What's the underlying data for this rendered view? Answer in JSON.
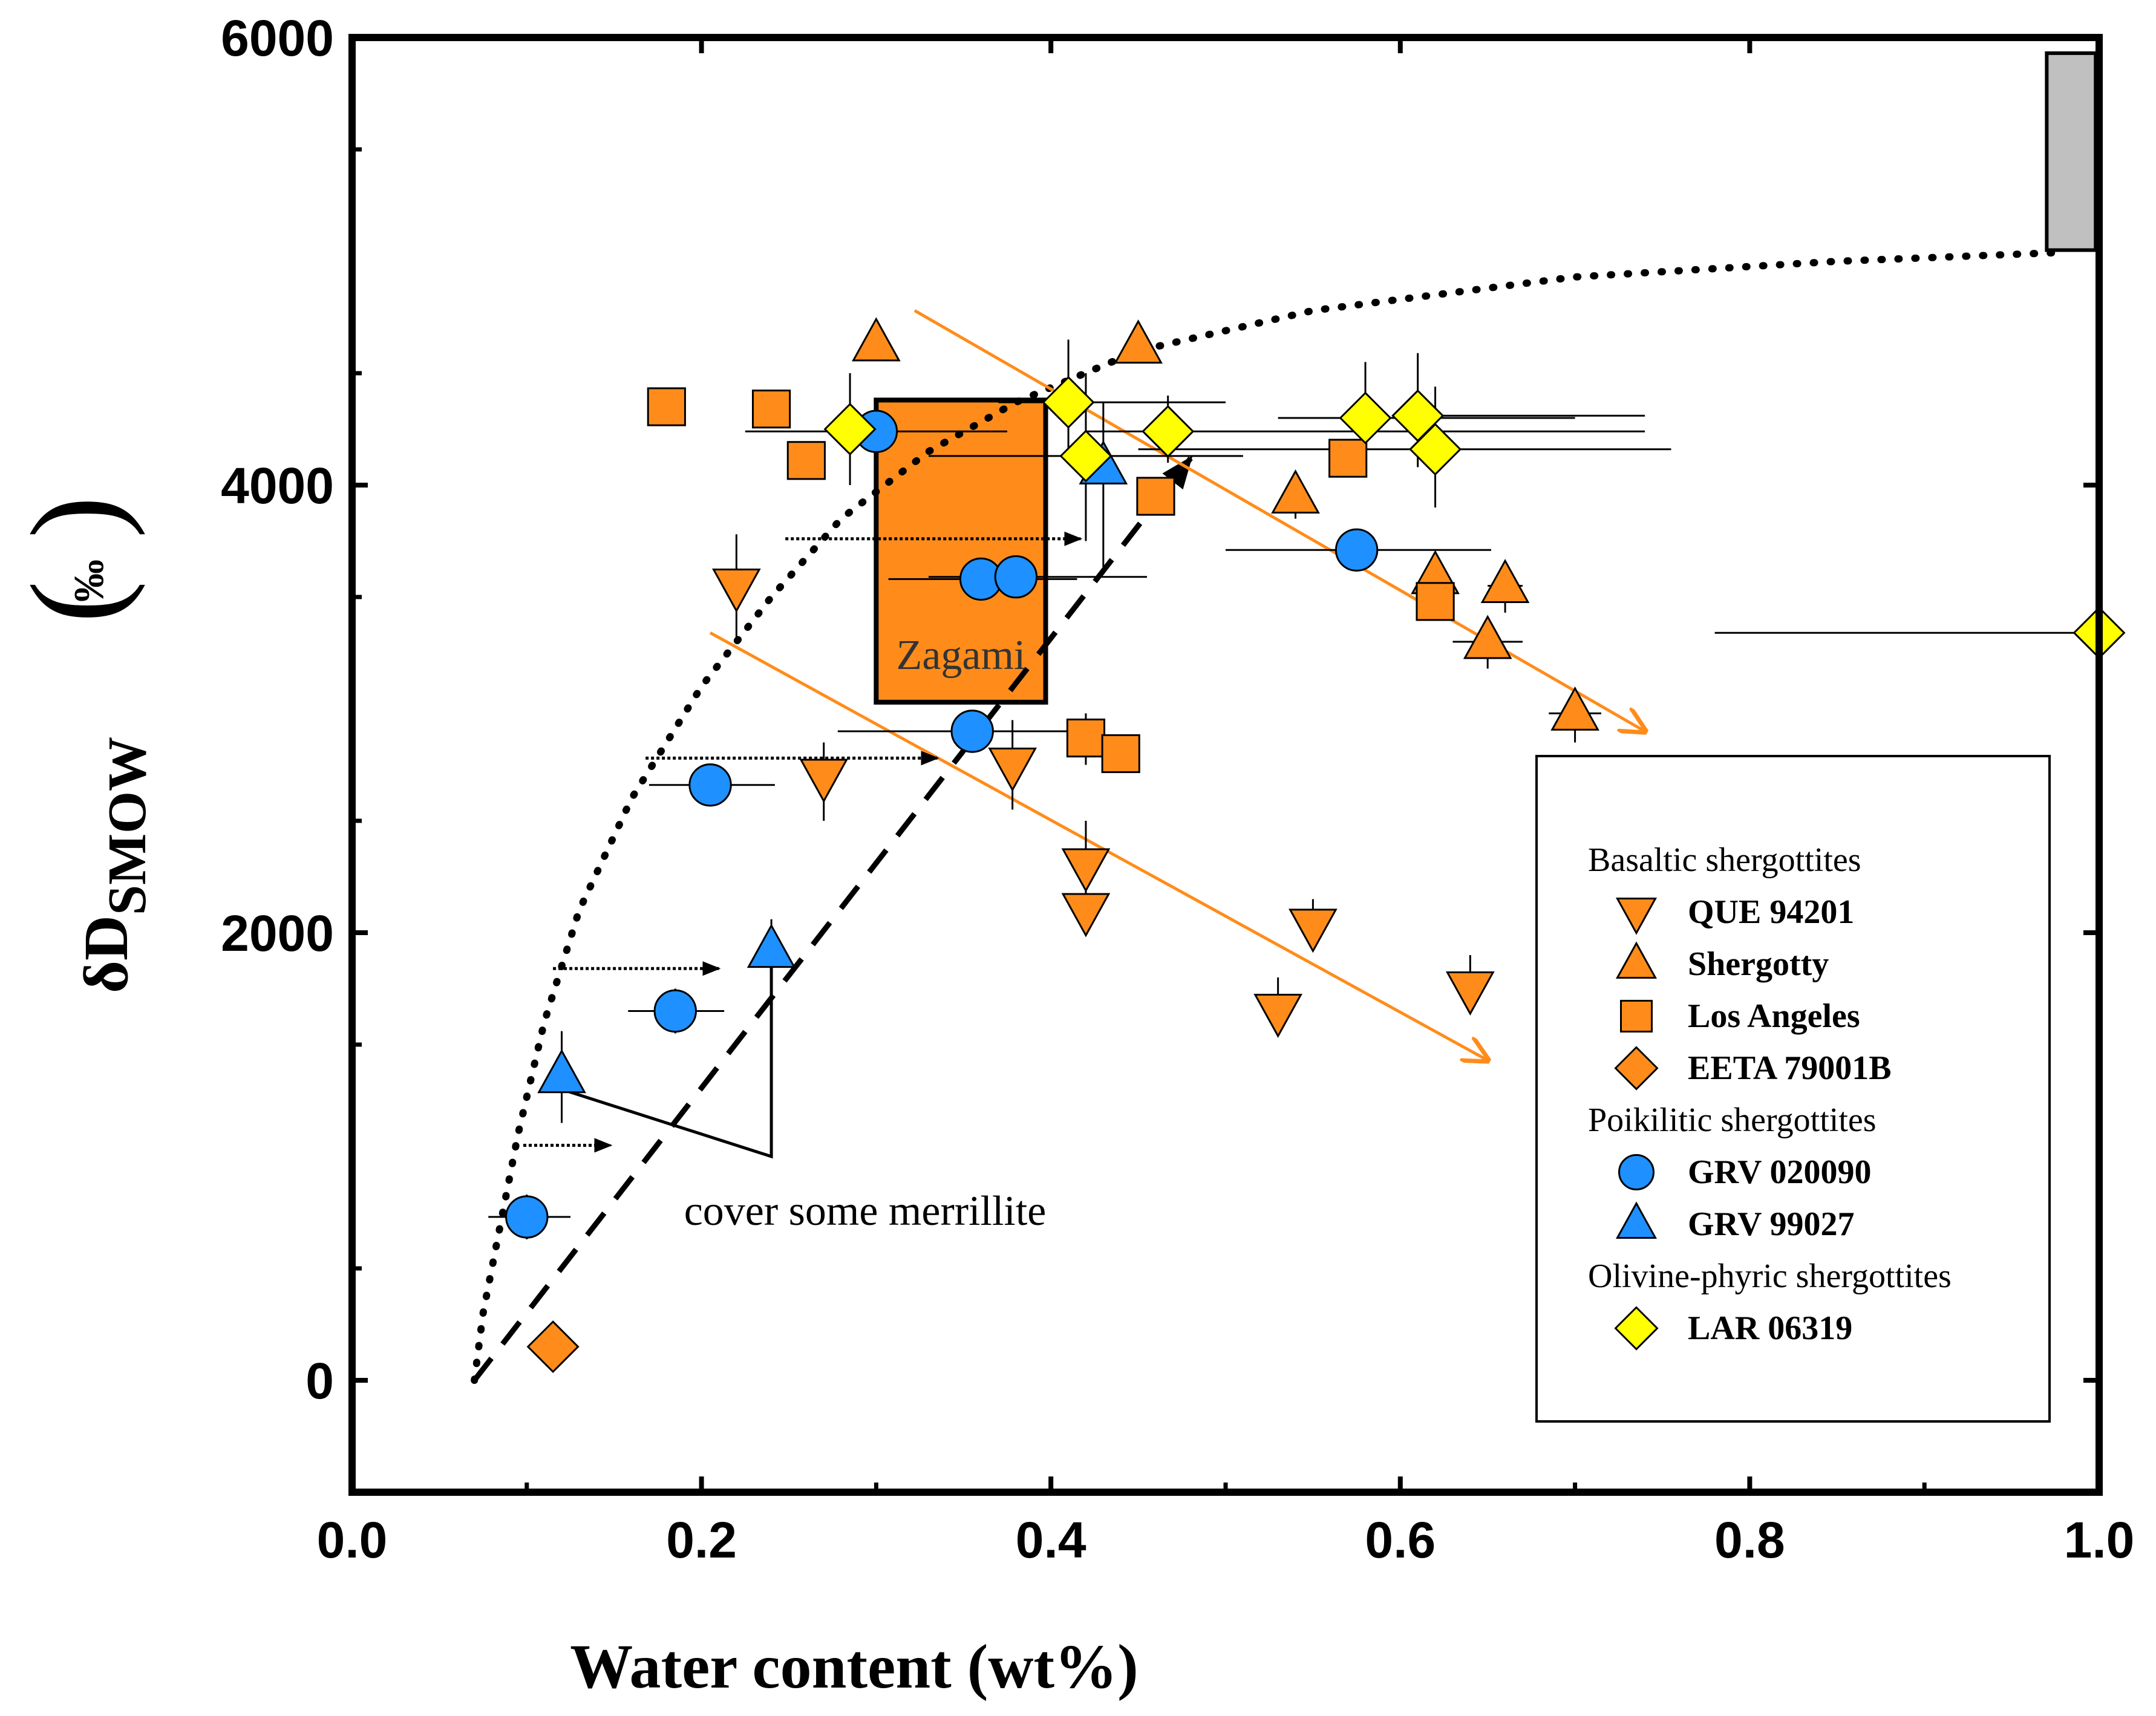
{
  "chart_data": {
    "type": "scatter",
    "xlabel": "Water content (wt%)",
    "ylabel": "δD",
    "ylabel_sub": "SMOW",
    "ylabel_unit": "‰",
    "xlim": [
      0.0,
      1.0
    ],
    "ylim": [
      -500,
      6000
    ],
    "x_ticks": [
      "0.0",
      "0.2",
      "0.4",
      "0.6",
      "0.8",
      "1.0"
    ],
    "y_ticks": [
      "0",
      "2000",
      "4000",
      "6000"
    ],
    "x_tick_values": [
      0.0,
      0.2,
      0.4,
      0.6,
      0.8,
      1.0
    ],
    "y_tick_values": [
      0,
      2000,
      4000,
      6000
    ],
    "legend": {
      "placement": "bottom-right",
      "groups": [
        {
          "title": "Basaltic shergottites",
          "entries": [
            "QUE 94201",
            "Shergotty",
            "Los Angeles",
            "EETA 79001B"
          ]
        },
        {
          "title": "Poikilitic shergottites",
          "entries": [
            "GRV 020090",
            "GRV 99027"
          ]
        },
        {
          "title": "Olivine-phyric shergottites",
          "entries": [
            "LAR 06319"
          ]
        }
      ]
    },
    "series": [
      {
        "name": "QUE 94201",
        "marker": "triangle-down",
        "color": "#FF8C1A",
        "points": [
          [
            0.22,
            3550
          ],
          [
            0.27,
            2700
          ],
          [
            0.378,
            2750
          ],
          [
            0.42,
            2300
          ],
          [
            0.42,
            2100
          ],
          [
            0.53,
            1650
          ],
          [
            0.55,
            2030
          ],
          [
            0.64,
            1750
          ]
        ]
      },
      {
        "name": "Shergotty",
        "marker": "triangle-up",
        "color": "#FF8C1A",
        "points": [
          [
            0.3,
            4630
          ],
          [
            0.45,
            4620
          ],
          [
            0.54,
            3950
          ],
          [
            0.62,
            3590
          ],
          [
            0.66,
            3550
          ],
          [
            0.65,
            3300
          ],
          [
            0.7,
            2980
          ]
        ]
      },
      {
        "name": "Los Angeles",
        "marker": "square",
        "color": "#FF8C1A",
        "points": [
          [
            0.18,
            4350
          ],
          [
            0.24,
            4340
          ],
          [
            0.26,
            4110
          ],
          [
            0.42,
            2870
          ],
          [
            0.44,
            2800
          ],
          [
            0.46,
            3950
          ],
          [
            0.57,
            4120
          ],
          [
            0.62,
            3480
          ]
        ]
      },
      {
        "name": "EETA 79001B",
        "marker": "diamond",
        "color": "#FF8C1A",
        "points": [
          [
            0.115,
            150
          ]
        ]
      },
      {
        "name": "GRV 020090",
        "marker": "circle",
        "color": "#1E90FF",
        "points": [
          [
            0.1,
            730
          ],
          [
            0.185,
            1650
          ],
          [
            0.205,
            2660
          ],
          [
            0.3,
            4240
          ],
          [
            0.36,
            3580
          ],
          [
            0.38,
            3590
          ],
          [
            0.355,
            2900
          ],
          [
            0.575,
            3710
          ]
        ]
      },
      {
        "name": "GRV 99027",
        "marker": "triangle-up",
        "color": "#1E90FF",
        "points": [
          [
            0.12,
            1360
          ],
          [
            0.24,
            1920
          ],
          [
            0.43,
            4080
          ]
        ]
      },
      {
        "name": "LAR 06319",
        "marker": "diamond",
        "color": "#FFFF00",
        "points": [
          [
            0.285,
            4250
          ],
          [
            0.41,
            4370
          ],
          [
            0.42,
            4130
          ],
          [
            0.467,
            4240
          ],
          [
            0.58,
            4300
          ],
          [
            0.61,
            4310
          ],
          [
            0.62,
            4160
          ],
          [
            1.0,
            3340
          ]
        ]
      }
    ],
    "error_bars": [
      {
        "x": 0.1,
        "y": 730,
        "xlo": 0.078,
        "xhi": 0.125,
        "ylo": 630,
        "yhi": 830
      },
      {
        "x": 0.185,
        "y": 1650,
        "xlo": 0.158,
        "xhi": 0.213,
        "ylo": 1550,
        "yhi": 1750
      },
      {
        "x": 0.205,
        "y": 2660,
        "xlo": 0.17,
        "xhi": 0.242
      },
      {
        "x": 0.3,
        "y": 4240,
        "xlo": 0.225,
        "xhi": 0.375
      },
      {
        "x": 0.36,
        "y": 3580,
        "xlo": 0.307,
        "xhi": 0.415
      },
      {
        "x": 0.38,
        "y": 3590,
        "xlo": 0.33,
        "xhi": 0.455
      },
      {
        "x": 0.355,
        "y": 2900,
        "xlo": 0.278,
        "xhi": 0.43
      },
      {
        "x": 0.575,
        "y": 3710,
        "xlo": 0.5,
        "xhi": 0.652,
        "ylo": 3620,
        "yhi": 3800
      },
      {
        "x": 0.12,
        "y": 1360,
        "ylo": 1150,
        "yhi": 1560
      },
      {
        "x": 0.24,
        "y": 1920,
        "ylo": 1800,
        "yhi": 2060
      },
      {
        "x": 0.43,
        "y": 4080,
        "ylo": 3600,
        "yhi": 4370
      },
      {
        "x": 0.285,
        "y": 4250,
        "ylo": 4000,
        "yhi": 4500
      },
      {
        "x": 0.41,
        "y": 4370,
        "xlo": 0.37,
        "xhi": 0.5,
        "ylo": 4150,
        "yhi": 4650
      },
      {
        "x": 0.42,
        "y": 4130,
        "xlo": 0.33,
        "xhi": 0.51,
        "ylo": 3750,
        "yhi": 4500
      },
      {
        "x": 0.467,
        "y": 4240,
        "xlo": 0.42,
        "xhi": 0.74,
        "ylo": 4100,
        "yhi": 4400
      },
      {
        "x": 0.58,
        "y": 4300,
        "xlo": 0.53,
        "xhi": 0.7,
        "ylo": 4100,
        "yhi": 4550
      },
      {
        "x": 0.61,
        "y": 4310,
        "xlo": 0.6,
        "xhi": 0.74,
        "ylo": 4080,
        "yhi": 4590
      },
      {
        "x": 0.62,
        "y": 4160,
        "xlo": 0.45,
        "xhi": 0.755,
        "ylo": 3900,
        "yhi": 4440
      },
      {
        "x": 1.0,
        "y": 3340,
        "xlo": 0.78,
        "xhi": 1.0,
        "ylo": 3100,
        "yhi": 3600
      },
      {
        "x": 0.22,
        "y": 3550,
        "ylo": 3300,
        "yhi": 3780
      },
      {
        "x": 0.27,
        "y": 2700,
        "ylo": 2500,
        "yhi": 2850
      },
      {
        "x": 0.378,
        "y": 2750,
        "ylo": 2550,
        "yhi": 2950
      },
      {
        "x": 0.42,
        "y": 2300,
        "ylo": 2150,
        "yhi": 2500
      },
      {
        "x": 0.42,
        "y": 2100,
        "ylo": 2000,
        "yhi": 2200
      },
      {
        "x": 0.53,
        "y": 1650,
        "ylo": 1550,
        "yhi": 1800
      },
      {
        "x": 0.55,
        "y": 2030,
        "ylo": 1950,
        "yhi": 2150
      },
      {
        "x": 0.64,
        "y": 1750,
        "ylo": 1650,
        "yhi": 1900
      },
      {
        "x": 0.54,
        "y": 3950,
        "ylo": 3850,
        "yhi": 4050
      },
      {
        "x": 0.62,
        "y": 3590,
        "ylo": 3500,
        "yhi": 3680
      },
      {
        "x": 0.66,
        "y": 3550,
        "xlo": 0.65,
        "xhi": 0.67,
        "ylo": 3430,
        "yhi": 3650
      },
      {
        "x": 0.65,
        "y": 3300,
        "xlo": 0.63,
        "xhi": 0.67,
        "ylo": 3180,
        "yhi": 3400
      },
      {
        "x": 0.7,
        "y": 2980,
        "xlo": 0.685,
        "xhi": 0.715,
        "ylo": 2850,
        "yhi": 3080
      },
      {
        "x": 0.46,
        "y": 3950,
        "ylo": 3900,
        "yhi": 4000
      },
      {
        "x": 0.42,
        "y": 2870,
        "ylo": 2750,
        "yhi": 2980
      },
      {
        "x": 0.44,
        "y": 2800,
        "ylo": 2720,
        "yhi": 2880
      },
      {
        "x": 0.62,
        "y": 3480,
        "ylo": 3400,
        "yhi": 3560
      }
    ],
    "zagami_box": {
      "label": "Zagami",
      "x0": 0.3,
      "x1": 0.397,
      "y0": 3030,
      "y1": 4380,
      "color": "#FF8C1A"
    },
    "gray_box": {
      "x0": 0.97,
      "x1": 0.998,
      "y0": 5050,
      "y1": 5930,
      "color": "#C0C0C0"
    },
    "dotted_curve": [
      [
        0.07,
        0
      ],
      [
        0.075,
        300
      ],
      [
        0.085,
        700
      ],
      [
        0.095,
        1100
      ],
      [
        0.11,
        1600
      ],
      [
        0.13,
        2100
      ],
      [
        0.16,
        2600
      ],
      [
        0.2,
        3100
      ],
      [
        0.24,
        3500
      ],
      [
        0.28,
        3850
      ],
      [
        0.33,
        4150
      ],
      [
        0.38,
        4370
      ],
      [
        0.45,
        4600
      ],
      [
        0.55,
        4780
      ],
      [
        0.7,
        4930
      ],
      [
        0.85,
        5000
      ],
      [
        0.98,
        5040
      ]
    ],
    "dashed_line": [
      [
        0.07,
        0
      ],
      [
        0.48,
        4120
      ]
    ],
    "orange_arrows": [
      {
        "from": [
          0.322,
          4780
        ],
        "to": [
          0.74,
          2900
        ]
      },
      {
        "from": [
          0.205,
          3340
        ],
        "to": [
          0.65,
          1430
        ]
      }
    ],
    "dotted_arrows": [
      {
        "from": [
          0.098,
          1050
        ],
        "to": [
          0.148,
          1050
        ],
        "y": 1050
      },
      {
        "from": [
          0.115,
          1840
        ],
        "to": [
          0.21,
          1840
        ],
        "y": 1840
      },
      {
        "from": [
          0.168,
          2780
        ],
        "to": [
          0.335,
          2780
        ],
        "y": 2780
      },
      {
        "from": [
          0.248,
          3760
        ],
        "to": [
          0.417,
          3760
        ],
        "y": 3760
      }
    ],
    "annotation": {
      "text": "cover some merrillite",
      "x": 0.19,
      "y": 830,
      "leader": [
        [
          0.12,
          1300
        ],
        [
          0.24,
          1000
        ],
        [
          0.24,
          1860
        ]
      ]
    }
  }
}
